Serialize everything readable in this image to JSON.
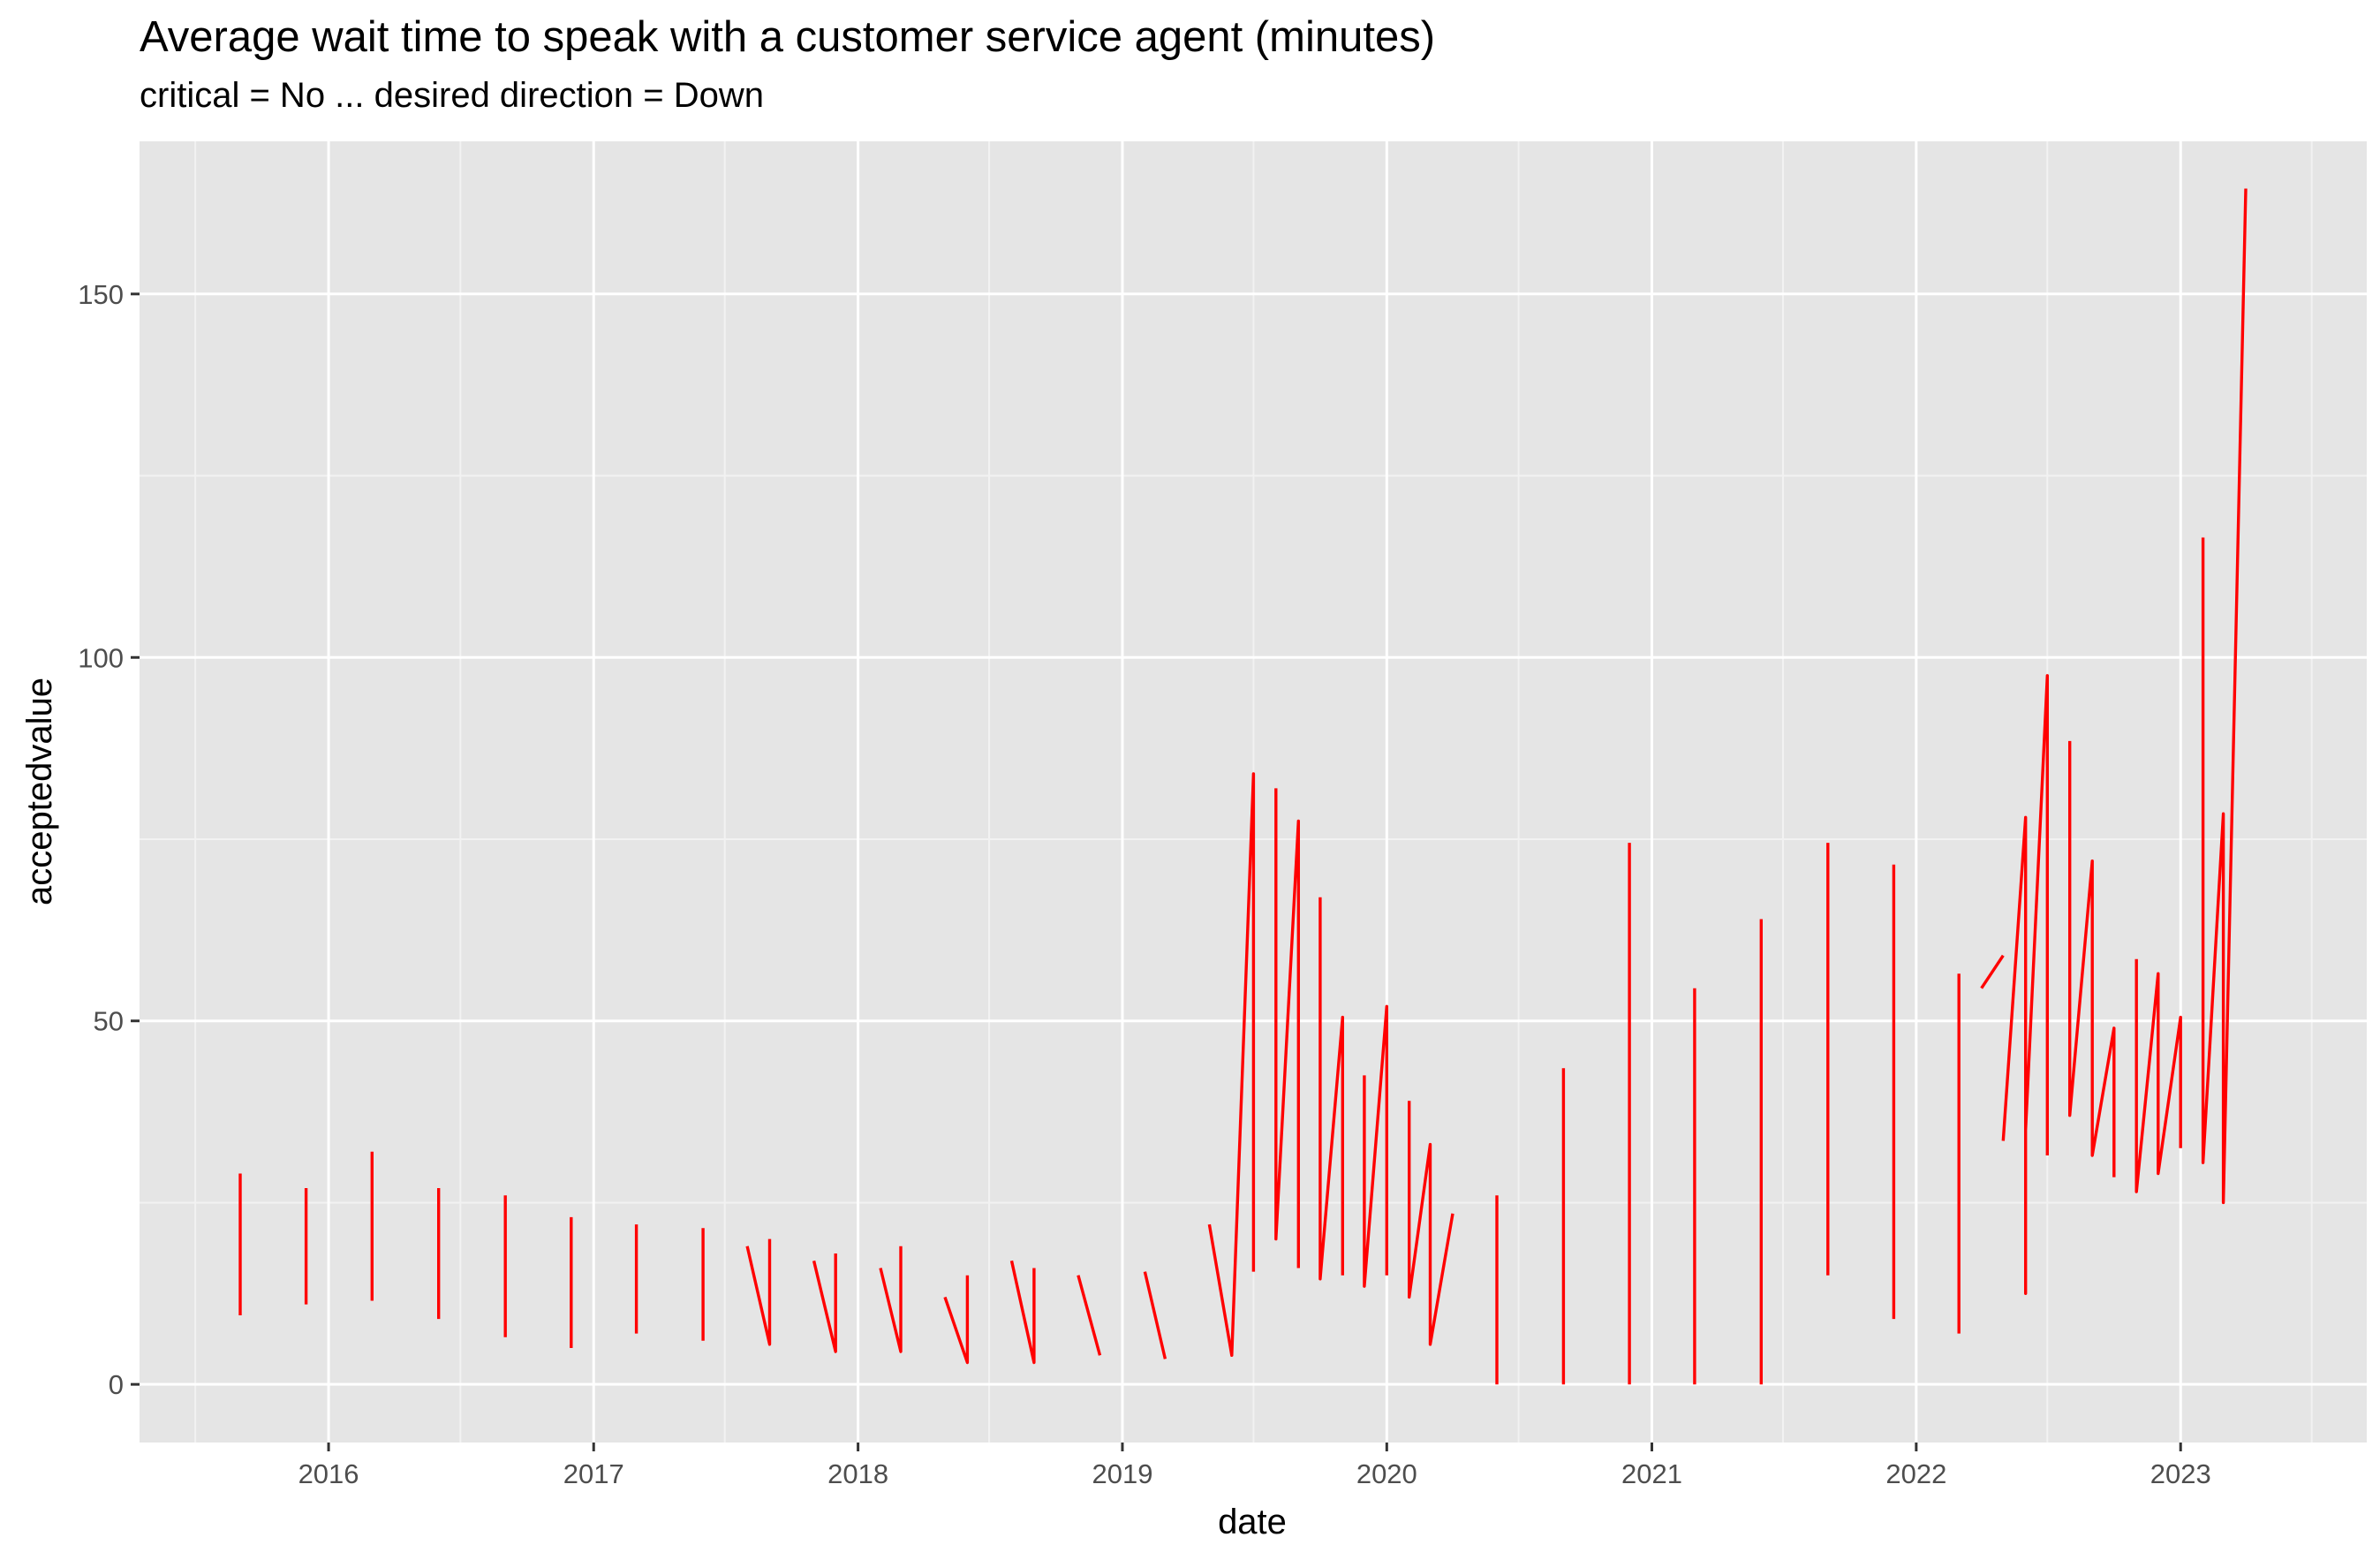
{
  "chart_data": {
    "type": "line",
    "title": "Average wait time to speak with a customer service agent (minutes)",
    "subtitle": "critical = No ... desired direction = Down",
    "xlabel": "date",
    "ylabel": "acceptedvalue",
    "x_ticks": [
      "2016",
      "2017",
      "2018",
      "2019",
      "2020",
      "2021",
      "2022",
      "2023"
    ],
    "y_ticks": [
      0,
      50,
      100,
      150
    ],
    "xlim": [
      "2015-04-15",
      "2023-09-15"
    ],
    "ylim": [
      -8,
      171
    ],
    "grid": true,
    "line_color": "#ff0000",
    "panel_color": "#e5e5e5",
    "series": [
      {
        "values": [
          {
            "x": "2015-09-01",
            "y": 9.5
          },
          {
            "x": "2015-09-01",
            "y": 29
          }
        ]
      },
      {
        "values": [
          {
            "x": "2015-12-01",
            "y": 11
          },
          {
            "x": "2015-12-01",
            "y": 27
          }
        ]
      },
      {
        "values": [
          {
            "x": "2016-03-01",
            "y": 11.5
          },
          {
            "x": "2016-03-01",
            "y": 32
          }
        ]
      },
      {
        "values": [
          {
            "x": "2016-06-01",
            "y": 9
          },
          {
            "x": "2016-06-01",
            "y": 27
          }
        ]
      },
      {
        "values": [
          {
            "x": "2016-09-01",
            "y": 6.5
          },
          {
            "x": "2016-09-01",
            "y": 26
          }
        ]
      },
      {
        "values": [
          {
            "x": "2016-12-01",
            "y": 5
          },
          {
            "x": "2016-12-01",
            "y": 23
          }
        ]
      },
      {
        "values": [
          {
            "x": "2017-03-01",
            "y": 7
          },
          {
            "x": "2017-03-01",
            "y": 22
          }
        ]
      },
      {
        "values": [
          {
            "x": "2017-06-01",
            "y": 6
          },
          {
            "x": "2017-06-01",
            "y": 21.5
          }
        ]
      },
      {
        "values": [
          {
            "x": "2017-08-01",
            "y": 19
          },
          {
            "x": "2017-09-01",
            "y": 5.5
          },
          {
            "x": "2017-09-01",
            "y": 20
          }
        ]
      },
      {
        "values": [
          {
            "x": "2017-11-01",
            "y": 17
          },
          {
            "x": "2017-12-01",
            "y": 4.5
          },
          {
            "x": "2017-12-01",
            "y": 18
          }
        ]
      },
      {
        "values": [
          {
            "x": "2018-02-01",
            "y": 16
          },
          {
            "x": "2018-03-01",
            "y": 4.5
          },
          {
            "x": "2018-03-01",
            "y": 19
          }
        ]
      },
      {
        "values": [
          {
            "x": "2018-05-01",
            "y": 12
          },
          {
            "x": "2018-06-01",
            "y": 3
          },
          {
            "x": "2018-06-01",
            "y": 15
          }
        ]
      },
      {
        "values": [
          {
            "x": "2018-08-01",
            "y": 17
          },
          {
            "x": "2018-09-01",
            "y": 3
          },
          {
            "x": "2018-09-01",
            "y": 16
          }
        ]
      },
      {
        "values": [
          {
            "x": "2018-11-01",
            "y": 15
          },
          {
            "x": "2018-12-01",
            "y": 4
          }
        ]
      },
      {
        "values": [
          {
            "x": "2019-02-01",
            "y": 15.5
          },
          {
            "x": "2019-03-01",
            "y": 3.5
          }
        ]
      },
      {
        "values": [
          {
            "x": "2019-05-01",
            "y": 22
          },
          {
            "x": "2019-06-01",
            "y": 4
          },
          {
            "x": "2019-07-01",
            "y": 84
          },
          {
            "x": "2019-07-01",
            "y": 15.5
          }
        ]
      },
      {
        "values": [
          {
            "x": "2019-08-01",
            "y": 82
          },
          {
            "x": "2019-08-01",
            "y": 20
          },
          {
            "x": "2019-09-01",
            "y": 77.5
          },
          {
            "x": "2019-09-01",
            "y": 16
          }
        ]
      },
      {
        "values": [
          {
            "x": "2019-10-01",
            "y": 67
          },
          {
            "x": "2019-10-01",
            "y": 14.5
          },
          {
            "x": "2019-11-01",
            "y": 50.5
          },
          {
            "x": "2019-11-01",
            "y": 15
          }
        ]
      },
      {
        "values": [
          {
            "x": "2019-12-01",
            "y": 42.5
          },
          {
            "x": "2019-12-01",
            "y": 13.5
          },
          {
            "x": "2020-01-01",
            "y": 52
          },
          {
            "x": "2020-01-01",
            "y": 15
          }
        ]
      },
      {
        "values": [
          {
            "x": "2020-02-01",
            "y": 39
          },
          {
            "x": "2020-02-01",
            "y": 12
          },
          {
            "x": "2020-03-01",
            "y": 33
          },
          {
            "x": "2020-03-01",
            "y": 5.5
          },
          {
            "x": "2020-04-01",
            "y": 23.5
          }
        ]
      },
      {
        "values": [
          {
            "x": "2020-06-01",
            "y": 0
          },
          {
            "x": "2020-06-01",
            "y": 26
          }
        ]
      },
      {
        "values": [
          {
            "x": "2020-09-01",
            "y": 0
          },
          {
            "x": "2020-09-01",
            "y": 43.5
          }
        ]
      },
      {
        "values": [
          {
            "x": "2020-12-01",
            "y": 0
          },
          {
            "x": "2020-12-01",
            "y": 74.5
          }
        ]
      },
      {
        "values": [
          {
            "x": "2021-03-01",
            "y": 0
          },
          {
            "x": "2021-03-01",
            "y": 54.5
          }
        ]
      },
      {
        "values": [
          {
            "x": "2021-06-01",
            "y": 0
          },
          {
            "x": "2021-06-01",
            "y": 64
          }
        ]
      },
      {
        "values": [
          {
            "x": "2021-09-01",
            "y": 15
          },
          {
            "x": "2021-09-01",
            "y": 74.5
          }
        ]
      },
      {
        "values": [
          {
            "x": "2021-12-01",
            "y": 9
          },
          {
            "x": "2021-12-01",
            "y": 71.5
          }
        ]
      },
      {
        "values": [
          {
            "x": "2022-03-01",
            "y": 7
          },
          {
            "x": "2022-03-01",
            "y": 56.5
          }
        ]
      },
      {
        "values": [
          {
            "x": "2022-04-01",
            "y": 54.5
          },
          {
            "x": "2022-05-01",
            "y": 59
          }
        ]
      },
      {
        "values": [
          {
            "x": "2022-05-01",
            "y": 33.5
          },
          {
            "x": "2022-06-01",
            "y": 78
          },
          {
            "x": "2022-06-01",
            "y": 12.5
          },
          {
            "x": "2022-06-01",
            "y": 35
          },
          {
            "x": "2022-07-01",
            "y": 97.5
          },
          {
            "x": "2022-07-01",
            "y": 31.5
          }
        ]
      },
      {
        "values": [
          {
            "x": "2022-08-01",
            "y": 88.5
          },
          {
            "x": "2022-08-01",
            "y": 37
          },
          {
            "x": "2022-09-01",
            "y": 72
          },
          {
            "x": "2022-09-01",
            "y": 31.5
          },
          {
            "x": "2022-10-01",
            "y": 49
          },
          {
            "x": "2022-10-01",
            "y": 28.5
          }
        ]
      },
      {
        "values": [
          {
            "x": "2022-11-01",
            "y": 58.5
          },
          {
            "x": "2022-11-01",
            "y": 26.5
          },
          {
            "x": "2022-12-01",
            "y": 56.5
          },
          {
            "x": "2022-12-01",
            "y": 29
          },
          {
            "x": "2023-01-01",
            "y": 50.5
          },
          {
            "x": "2023-01-01",
            "y": 32.5
          }
        ]
      },
      {
        "values": [
          {
            "x": "2023-02-01",
            "y": 116.5
          },
          {
            "x": "2023-02-01",
            "y": 30.5
          },
          {
            "x": "2023-03-01",
            "y": 78.5
          },
          {
            "x": "2023-03-01",
            "y": 25
          },
          {
            "x": "2023-04-01",
            "y": 164.5
          }
        ]
      }
    ]
  }
}
